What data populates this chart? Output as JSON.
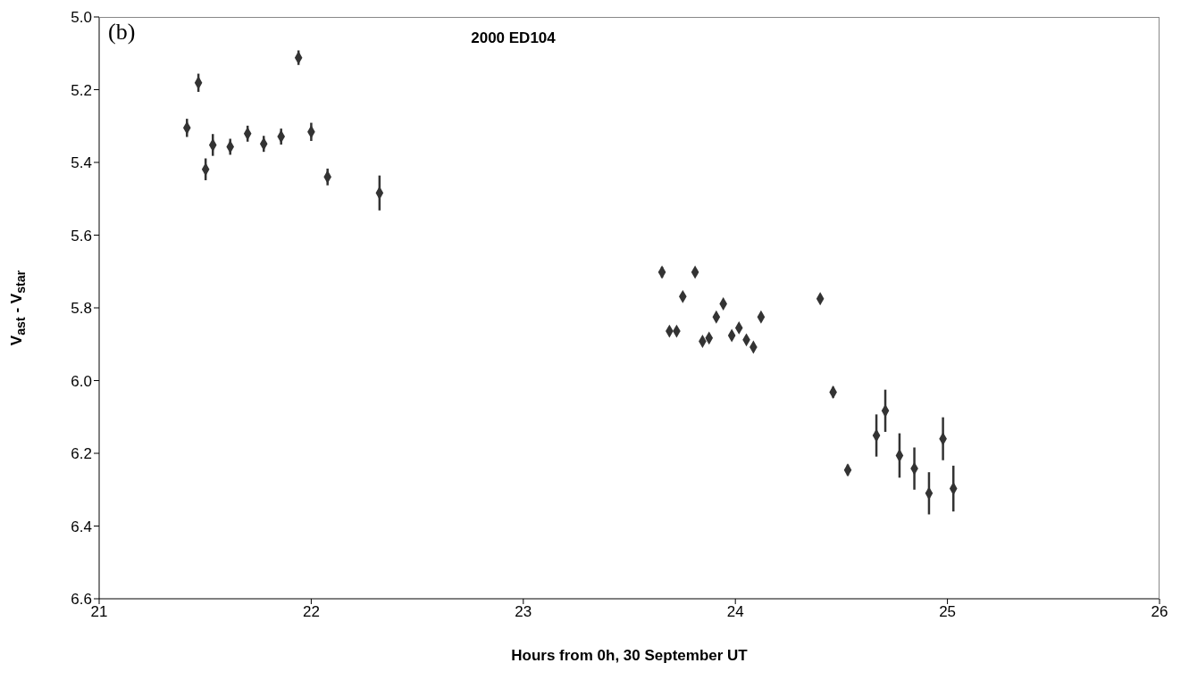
{
  "chart_data": {
    "type": "scatter",
    "title": "2000 ED104",
    "xlabel": "Hours from 0h, 30 September UT",
    "ylabel": "V$_{ast}$ - V$_{star}$",
    "annotations": [
      "(b)"
    ],
    "x": [
      21.414,
      21.468,
      21.502,
      21.536,
      21.618,
      21.7,
      21.776,
      21.94,
      21.858,
      22.0,
      22.077,
      22.322,
      23.654,
      23.689,
      23.723,
      23.752,
      23.81,
      23.845,
      23.876,
      23.91,
      23.943,
      23.983,
      24.017,
      24.052,
      24.085,
      24.121,
      24.4,
      24.461,
      24.53,
      24.665,
      24.707,
      24.774,
      24.844,
      24.913,
      24.979,
      25.028
    ],
    "values": [
      5.305,
      5.181,
      5.419,
      5.352,
      5.357,
      5.321,
      5.349,
      5.112,
      5.329,
      5.316,
      5.44,
      5.484,
      5.702,
      5.864,
      5.864,
      5.769,
      5.702,
      5.892,
      5.883,
      5.825,
      5.789,
      5.876,
      5.855,
      5.888,
      5.908,
      5.825,
      5.775,
      6.032,
      6.246,
      6.151,
      6.083,
      6.206,
      6.242,
      6.31,
      6.16,
      6.297
    ],
    "errors": [
      0.025,
      0.025,
      0.03,
      0.03,
      0.022,
      0.022,
      0.022,
      0.02,
      0.022,
      0.025,
      0.023,
      0.048,
      0.015,
      0.01,
      0.01,
      0.01,
      null,
      0.01,
      0.01,
      0.01,
      0.01,
      0.01,
      0.01,
      0.01,
      0.01,
      0.01,
      0.01,
      0.015,
      0.015,
      0.058,
      0.058,
      0.061,
      0.058,
      0.058,
      0.059,
      0.063
    ],
    "color": "#333333",
    "marker": "diamond",
    "xlim": [
      21,
      26
    ],
    "xticks": [
      21,
      22,
      23,
      24,
      25,
      26
    ],
    "ylim": [
      6.6,
      5.0
    ],
    "yticks": [
      {
        "value": 5.0,
        "label": "5.0"
      },
      {
        "value": 5.2,
        "label": "5.2"
      },
      {
        "value": 5.4,
        "label": "5.4"
      },
      {
        "value": 5.6,
        "label": "5.6"
      },
      {
        "value": 5.8,
        "label": "5.8"
      },
      {
        "value": 6.0,
        "label": "6.0"
      },
      {
        "value": 6.2,
        "label": "6.2"
      },
      {
        "value": 6.4,
        "label": "6.4"
      },
      {
        "value": 6.6,
        "label": "6.6"
      }
    ],
    "grid": false
  }
}
